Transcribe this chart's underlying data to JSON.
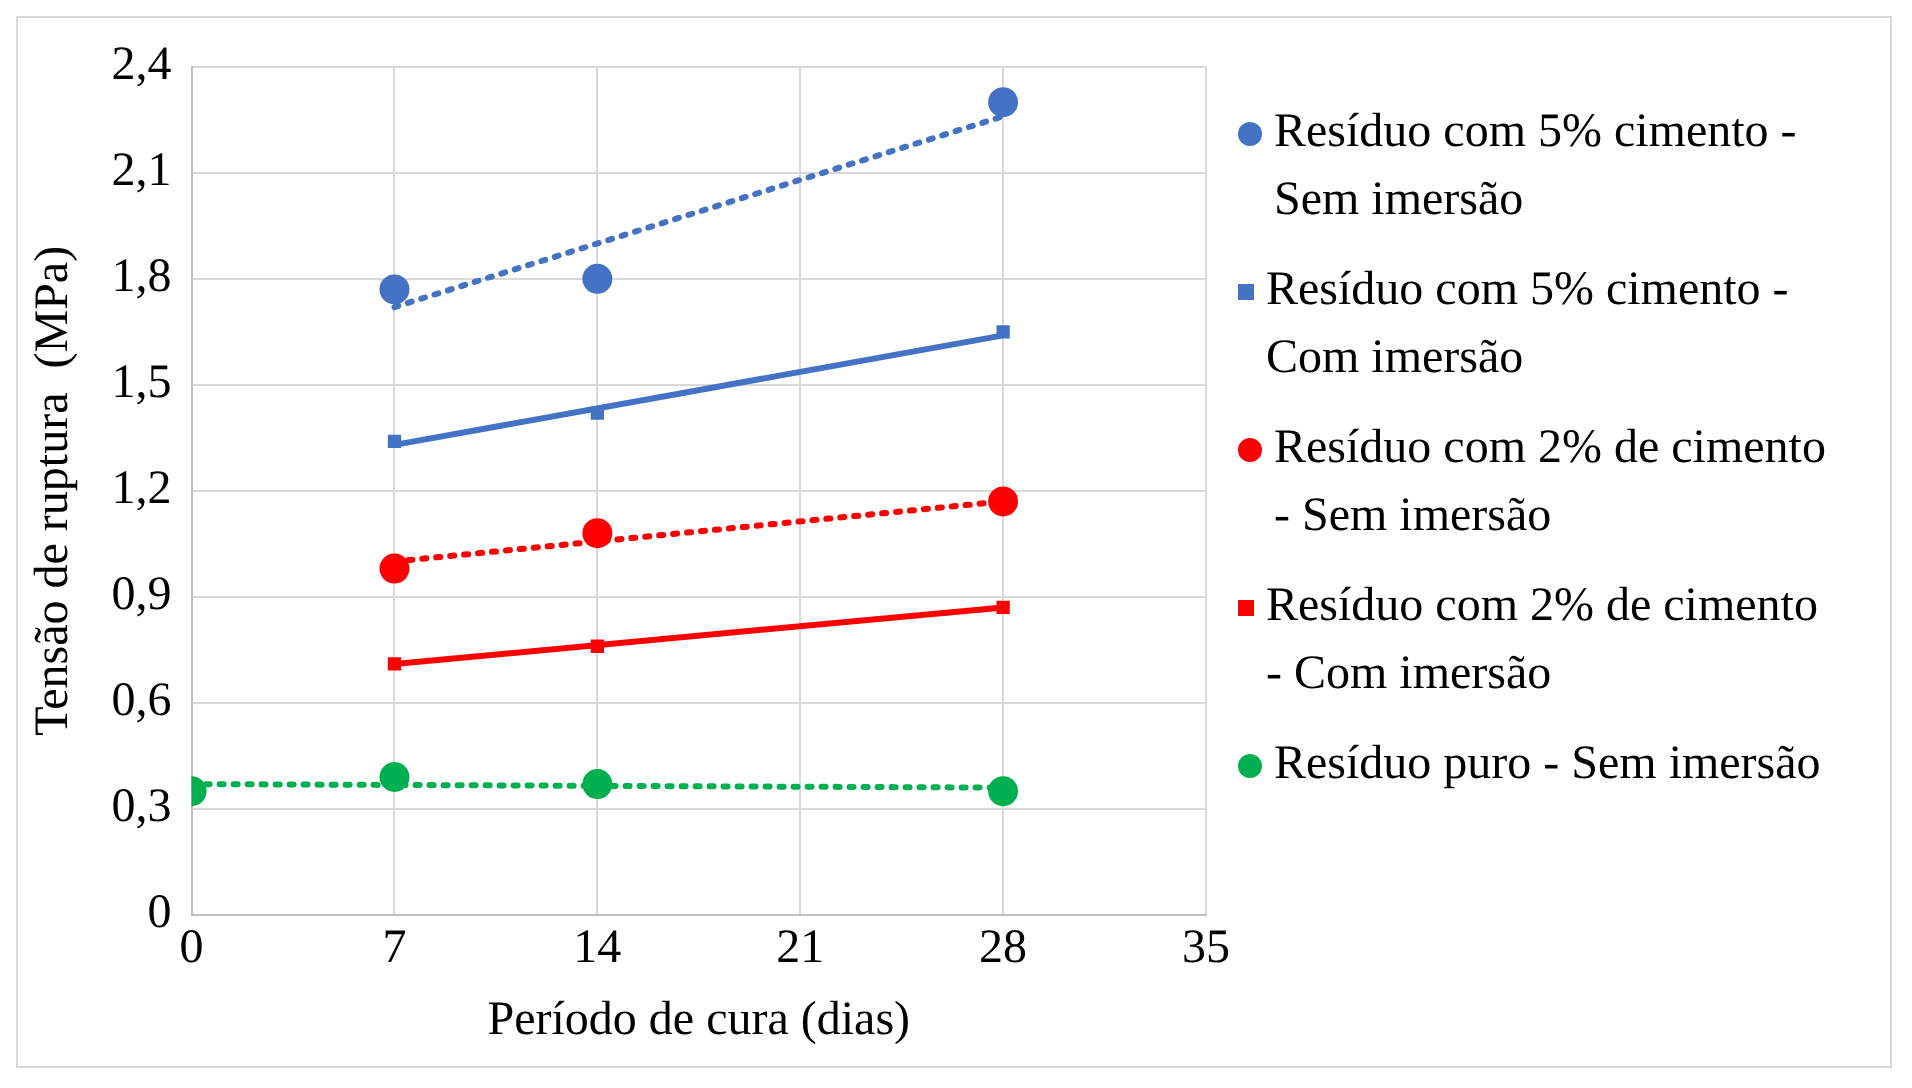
{
  "chart_data": {
    "type": "scatter",
    "xlabel": "Período de cura (dias)",
    "ylabel": "Tensão de ruptura  (MPa)",
    "xlim": [
      0,
      35
    ],
    "xticks": [
      0,
      7,
      14,
      21,
      28,
      35
    ],
    "ylim": [
      0,
      2.4
    ],
    "yticks": [
      {
        "value": 0,
        "label": "0"
      },
      {
        "value": 0.3,
        "label": "0,3"
      },
      {
        "value": 0.6,
        "label": "0,6"
      },
      {
        "value": 0.9,
        "label": "0,9"
      },
      {
        "value": 1.2,
        "label": "1,2"
      },
      {
        "value": 1.5,
        "label": "1,5"
      },
      {
        "value": 1.8,
        "label": "1,8"
      },
      {
        "value": 2.1,
        "label": "2,1"
      },
      {
        "value": 2.4,
        "label": "2,4"
      }
    ],
    "grid": true,
    "legend": "right",
    "series": [
      {
        "name": "Resíduo com 5% cimento - Sem imersão",
        "color": "#4472c4",
        "marker": "circle",
        "x": [
          7,
          14,
          28
        ],
        "values": [
          1.77,
          1.8,
          2.3
        ]
      },
      {
        "name": "Resíduo com 5% cimento - Com imersão",
        "color": "#4472c4",
        "marker": "square",
        "x": [
          7,
          14,
          28
        ],
        "values": [
          1.34,
          1.42,
          1.65
        ]
      },
      {
        "name": "Resíduo com 2% de cimento - Sem imersão",
        "color": "#ff0000",
        "marker": "circle",
        "x": [
          7,
          14,
          28
        ],
        "values": [
          0.98,
          1.08,
          1.17
        ]
      },
      {
        "name": "Resíduo com 2% de cimento - Com imersão",
        "color": "#ff0000",
        "marker": "square",
        "x": [
          7,
          14,
          28
        ],
        "values": [
          0.71,
          0.76,
          0.87
        ]
      },
      {
        "name": "Resíduo puro - Sem imersão",
        "color": "#00b050",
        "marker": "circle",
        "x": [
          0,
          7,
          14,
          28
        ],
        "values": [
          0.35,
          0.39,
          0.37,
          0.35
        ]
      },
      {
        "type": "line",
        "color": "#4472c4",
        "line_style": "dotted",
        "marker": "none",
        "x": [
          7,
          28
        ],
        "values": [
          1.72,
          2.26
        ]
      },
      {
        "type": "line",
        "color": "#4472c4",
        "line_style": "solid",
        "marker": "none",
        "x": [
          7,
          28
        ],
        "values": [
          1.33,
          1.64
        ]
      },
      {
        "type": "line",
        "color": "#ff0000",
        "line_style": "dotted",
        "marker": "none",
        "x": [
          7,
          28
        ],
        "values": [
          1.0,
          1.17
        ]
      },
      {
        "type": "line",
        "color": "#ff0000",
        "line_style": "solid",
        "marker": "none",
        "x": [
          7,
          28
        ],
        "values": [
          0.71,
          0.87
        ]
      },
      {
        "type": "line",
        "color": "#00b050",
        "line_style": "dotted",
        "marker": "none",
        "x": [
          0,
          28
        ],
        "values": [
          0.37,
          0.36
        ]
      }
    ]
  }
}
